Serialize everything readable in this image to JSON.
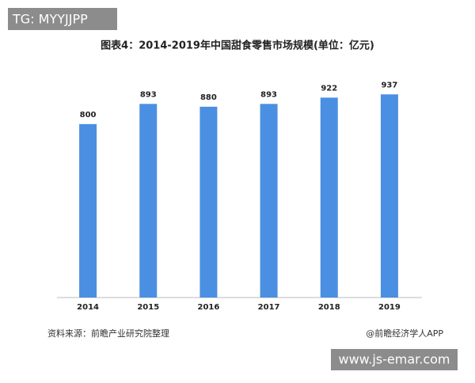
{
  "tag": "TG: MYYJJPP",
  "chart_data": {
    "type": "bar",
    "title": "图表4：2014-2019年中国甜食零售市场规模(单位：亿元)",
    "categories": [
      "2014",
      "2015",
      "2016",
      "2017",
      "2018",
      "2019"
    ],
    "values": [
      800,
      893,
      880,
      893,
      922,
      937
    ],
    "color": "#4a8fe2",
    "ylim": [
      0,
      1000
    ]
  },
  "footer": {
    "source": "资料来源：前瞻产业研究院整理",
    "brand": "@前瞻经济学人APP"
  },
  "watermark": "www.js-emar.com"
}
